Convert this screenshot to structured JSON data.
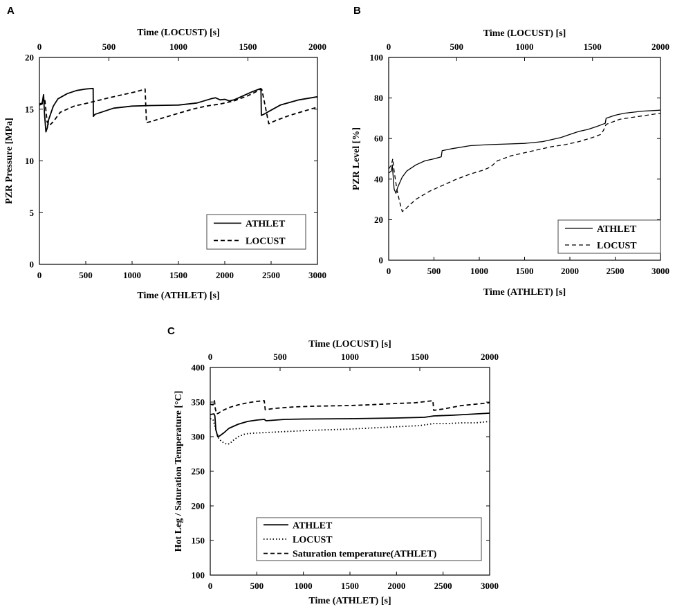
{
  "chart_data": [
    {
      "panel": "A",
      "type": "line",
      "ylabel": "PZR Pressure [MPa]",
      "xlabel_bottom": "Time (ATHLET) [s]",
      "xlabel_top": "Time (LOCUST) [s]",
      "xlim_bottom": [
        0,
        3000
      ],
      "xlim_top": [
        0,
        2000
      ],
      "ylim": [
        0,
        20
      ],
      "xticks_bottom": [
        0,
        500,
        1000,
        1500,
        2000,
        2500,
        3000
      ],
      "xticks_top": [
        0,
        500,
        1000,
        1500,
        2000
      ],
      "yticks": [
        0,
        5,
        10,
        15,
        20
      ],
      "legend_placement": "bottom-right",
      "series": [
        {
          "name": "ATHLET",
          "axis": "bottom",
          "style": "solid",
          "x": [
            0,
            30,
            45,
            55,
            70,
            85,
            100,
            150,
            200,
            300,
            400,
            500,
            580,
            582,
            600,
            800,
            1000,
            1200,
            1500,
            1700,
            1850,
            1900,
            1950,
            2000,
            2050,
            2100,
            2200,
            2300,
            2390,
            2395,
            2420,
            2500,
            2600,
            2800,
            3000
          ],
          "y": [
            15.5,
            15.6,
            16.4,
            14.5,
            12.8,
            13.2,
            14.0,
            15.3,
            16.0,
            16.5,
            16.8,
            16.95,
            17.0,
            14.3,
            14.5,
            15.1,
            15.3,
            15.35,
            15.4,
            15.6,
            16.0,
            16.1,
            15.9,
            15.95,
            15.8,
            15.9,
            16.3,
            16.7,
            17.0,
            14.4,
            14.5,
            14.9,
            15.4,
            15.9,
            16.2
          ]
        },
        {
          "name": "LOCUST",
          "axis": "top",
          "style": "dashed",
          "x": [
            0,
            20,
            30,
            40,
            55,
            70,
            100,
            150,
            250,
            350,
            500,
            600,
            700,
            750,
            760,
            770,
            800,
            900,
            1000,
            1100,
            1200,
            1300,
            1400,
            1500,
            1560,
            1580,
            1600,
            1650,
            1700,
            1800,
            1900,
            2000
          ],
          "y": [
            15.4,
            15.5,
            16.2,
            15.8,
            13.8,
            13.4,
            13.8,
            14.7,
            15.3,
            15.6,
            16.1,
            16.4,
            16.7,
            16.9,
            16.95,
            13.7,
            13.8,
            14.2,
            14.6,
            15.0,
            15.3,
            15.5,
            15.8,
            16.3,
            16.7,
            16.9,
            16.9,
            13.6,
            13.9,
            14.4,
            14.8,
            15.2
          ]
        }
      ]
    },
    {
      "panel": "B",
      "type": "line",
      "ylabel": "PZR Level [%]",
      "xlabel_bottom": "Time (ATHLET) [s]",
      "xlabel_top": "Time (LOCUST) [s]",
      "xlim_bottom": [
        0,
        3000
      ],
      "xlim_top": [
        0,
        2000
      ],
      "ylim": [
        0,
        100
      ],
      "xticks_bottom": [
        0,
        500,
        1000,
        1500,
        2000,
        2500,
        3000
      ],
      "xticks_top": [
        0,
        500,
        1000,
        1500,
        2000
      ],
      "yticks": [
        0,
        20,
        40,
        60,
        80,
        100
      ],
      "legend_placement": "bottom-right",
      "series": [
        {
          "name": "ATHLET",
          "axis": "bottom",
          "style": "solid",
          "x": [
            0,
            30,
            40,
            45,
            60,
            80,
            100,
            150,
            200,
            300,
            400,
            500,
            580,
            590,
            700,
            900,
            1100,
            1300,
            1500,
            1700,
            1900,
            2000,
            2100,
            2200,
            2300,
            2390,
            2400,
            2500,
            2600,
            2800,
            3000
          ],
          "y": [
            43,
            44,
            47,
            44,
            35,
            33,
            36,
            41,
            44,
            47,
            49,
            50,
            51,
            54,
            55,
            56.5,
            57,
            57.3,
            57.6,
            58.5,
            60.5,
            62,
            63.5,
            64.5,
            66,
            67.5,
            70,
            71.5,
            72.5,
            73.5,
            74
          ]
        },
        {
          "name": "LOCUST",
          "axis": "top",
          "style": "dashed",
          "x": [
            0,
            20,
            30,
            40,
            60,
            80,
            100,
            120,
            150,
            200,
            300,
            400,
            500,
            600,
            700,
            750,
            800,
            900,
            1000,
            1100,
            1200,
            1300,
            1400,
            1500,
            1560,
            1580,
            1600,
            1700,
            1800,
            1900,
            2000
          ],
          "y": [
            45,
            47,
            50,
            44,
            35,
            29,
            24,
            25,
            27,
            30,
            34,
            37,
            40,
            42.5,
            44.5,
            46,
            49,
            51.5,
            53,
            54.5,
            56,
            57,
            58.5,
            60.5,
            62,
            64,
            67,
            69.5,
            70.5,
            71.5,
            72.5
          ]
        }
      ]
    },
    {
      "panel": "C",
      "type": "line",
      "ylabel": "Hot Leg / Saturation Temperature [°C]",
      "xlabel_bottom": "Time (ATHLET) [s]",
      "xlabel_top": "Time (LOCUST) [s]",
      "xlim_bottom": [
        0,
        3000
      ],
      "xlim_top": [
        0,
        2000
      ],
      "ylim": [
        100,
        400
      ],
      "xticks_bottom": [
        0,
        500,
        1000,
        1500,
        2000,
        2500,
        3000
      ],
      "xticks_top": [
        0,
        500,
        1000,
        1500,
        2000
      ],
      "yticks": [
        100,
        150,
        200,
        250,
        300,
        350,
        400
      ],
      "legend_placement": "bottom-center",
      "series": [
        {
          "name": "ATHLET",
          "axis": "bottom",
          "style": "solid",
          "x": [
            0,
            40,
            50,
            60,
            80,
            100,
            150,
            200,
            300,
            400,
            500,
            580,
            600,
            800,
            1000,
            1500,
            2000,
            2300,
            2400,
            2600,
            2800,
            3000
          ],
          "y": [
            332,
            333,
            330,
            310,
            300,
            301,
            306,
            312,
            318,
            322,
            324,
            325,
            323,
            325,
            325.5,
            326,
            327,
            328,
            330,
            331,
            332.5,
            334
          ]
        },
        {
          "name": "LOCUST",
          "axis": "top",
          "style": "dotted",
          "x": [
            0,
            20,
            40,
            60,
            80,
            100,
            120,
            140,
            160,
            200,
            250,
            300,
            400,
            500,
            700,
            1000,
            1300,
            1500,
            1600,
            1700,
            1800,
            1900,
            2000
          ],
          "y": [
            326,
            325,
            310,
            298,
            293,
            291,
            289,
            290,
            294,
            300,
            304,
            305,
            306,
            307,
            309,
            311,
            314,
            316,
            319,
            319,
            320,
            320,
            322
          ]
        },
        {
          "name": "Saturation temperature(ATHLET)",
          "axis": "bottom",
          "style": "dashed",
          "x": [
            0,
            30,
            45,
            55,
            70,
            90,
            120,
            200,
            300,
            400,
            500,
            580,
            590,
            700,
            900,
            1100,
            1500,
            1700,
            2000,
            2200,
            2390,
            2400,
            2500,
            2700,
            3000
          ],
          "y": [
            347,
            346,
            352,
            340,
            333,
            334,
            337,
            342,
            346,
            349,
            351,
            352,
            339,
            341,
            343,
            344,
            345,
            346,
            348,
            349,
            352,
            338,
            340,
            345,
            349
          ]
        }
      ]
    }
  ]
}
